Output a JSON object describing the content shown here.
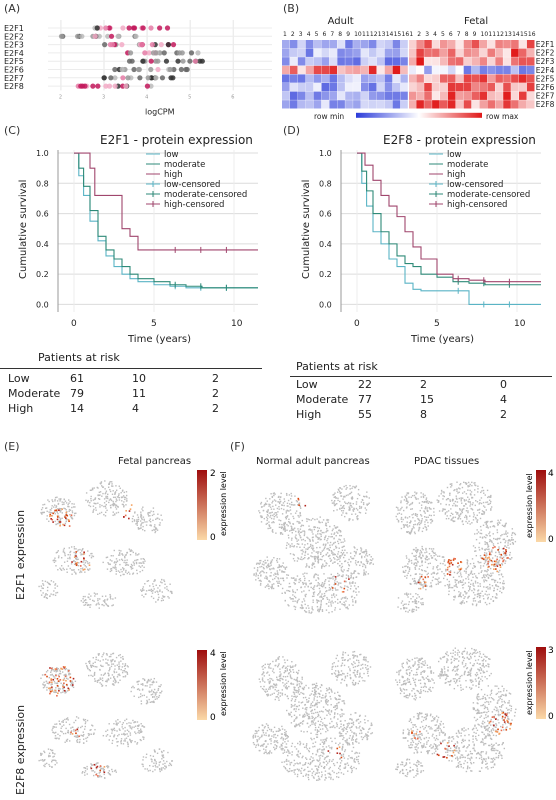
{
  "panels": {
    "A": "(A)",
    "B": "(B)",
    "C": "(C)",
    "D": "(D)",
    "E": "(E)",
    "F": "(F)"
  },
  "panelA": {
    "genes": [
      "E2F1",
      "E2F2",
      "E2F3",
      "E2F4",
      "E2F5",
      "E2F6",
      "E2F7",
      "E2F8"
    ],
    "xlabel": "logCPM",
    "ticks": [
      "2",
      "3",
      "4",
      "5",
      "6"
    ]
  },
  "panelB": {
    "group_adult": "Adult",
    "group_fetal": "Fetal",
    "adult_cols": [
      "1",
      "2",
      "3",
      "4",
      "5",
      "6",
      "7",
      "8",
      "9",
      "10",
      "11",
      "12",
      "13",
      "14",
      "15",
      "16"
    ],
    "fetal_cols": [
      "1",
      "2",
      "3",
      "4",
      "5",
      "6",
      "7",
      "8",
      "9",
      "10",
      "11",
      "12",
      "13",
      "14",
      "15",
      "16"
    ],
    "genes": [
      "E2F1",
      "E2F2",
      "E2F3",
      "E2F4",
      "E2F5",
      "E2F6",
      "E2F7",
      "E2F8"
    ],
    "legend_min": "row min",
    "legend_max": "row max",
    "min_color": "#2b3bd9",
    "max_color": "#e01818"
  },
  "chart_data": [
    {
      "type": "line",
      "title": "E2F1 - protein expression",
      "xlabel": "Time (years)",
      "ylabel": "Cumulative survival",
      "xlim": [
        -1,
        11.5
      ],
      "ylim": [
        -0.05,
        1.02
      ],
      "xticks": [
        "0",
        "5",
        "10"
      ],
      "yticks": [
        "0.0",
        "0.2",
        "0.4",
        "0.6",
        "0.8",
        "1.0"
      ],
      "legend": [
        "low",
        "moderate",
        "high",
        "low-censored",
        "moderate-censored",
        "high-censored"
      ],
      "legend_position": "top-right",
      "series": [
        {
          "name": "low",
          "color": "#5ab4c5",
          "x": [
            0,
            0.3,
            0.6,
            1,
            1.5,
            2,
            2.5,
            3,
            3.5,
            4,
            5,
            6,
            7,
            8,
            11.5
          ],
          "y": [
            1,
            0.85,
            0.72,
            0.55,
            0.42,
            0.32,
            0.25,
            0.2,
            0.17,
            0.15,
            0.13,
            0.12,
            0.11,
            0.11,
            0.11
          ]
        },
        {
          "name": "moderate",
          "color": "#2e8a78",
          "x": [
            0,
            0.3,
            0.6,
            1,
            1.5,
            2,
            2.5,
            3,
            3.5,
            4,
            5,
            6,
            7,
            8,
            11.5
          ],
          "y": [
            1,
            0.9,
            0.78,
            0.62,
            0.45,
            0.36,
            0.3,
            0.25,
            0.2,
            0.17,
            0.15,
            0.13,
            0.12,
            0.11,
            0.11
          ]
        },
        {
          "name": "high",
          "color": "#a0466d",
          "x": [
            0,
            0.5,
            1,
            1.3,
            2,
            2.5,
            3,
            3.5,
            4,
            11.5
          ],
          "y": [
            1,
            1,
            0.9,
            0.72,
            0.72,
            0.72,
            0.5,
            0.45,
            0.36,
            0.36
          ]
        }
      ]
    },
    {
      "type": "line",
      "title": "E2F8 - protein expression",
      "xlabel": "Time (years)",
      "ylabel": "Cumulative survival",
      "xlim": [
        -1,
        11.5
      ],
      "ylim": [
        -0.05,
        1.02
      ],
      "xticks": [
        "0",
        "5",
        "10"
      ],
      "yticks": [
        "0.0",
        "0.2",
        "0.4",
        "0.6",
        "0.8",
        "1.0"
      ],
      "legend": [
        "low",
        "moderate",
        "high",
        "low-censored",
        "moderate-censored",
        "high-censored"
      ],
      "legend_position": "top-right",
      "series": [
        {
          "name": "low",
          "color": "#5ab4c5",
          "x": [
            0,
            0.3,
            0.6,
            1,
            1.5,
            2,
            2.5,
            3,
            3.5,
            4,
            5,
            6,
            7,
            11.5
          ],
          "y": [
            1,
            0.8,
            0.65,
            0.48,
            0.4,
            0.3,
            0.25,
            0.14,
            0.1,
            0.09,
            0.09,
            0.09,
            0.0,
            0.0
          ]
        },
        {
          "name": "moderate",
          "color": "#2e8a78",
          "x": [
            0,
            0.3,
            0.6,
            1,
            1.5,
            2,
            2.5,
            3,
            3.5,
            4,
            5,
            6,
            7,
            8,
            11.5
          ],
          "y": [
            1,
            0.88,
            0.75,
            0.6,
            0.48,
            0.4,
            0.32,
            0.27,
            0.25,
            0.2,
            0.18,
            0.15,
            0.14,
            0.13,
            0.13
          ]
        },
        {
          "name": "high",
          "color": "#a0466d",
          "x": [
            0,
            0.5,
            1,
            1.5,
            2,
            2.5,
            3,
            3.5,
            4,
            5,
            6,
            7,
            8,
            11.5
          ],
          "y": [
            1,
            0.92,
            0.82,
            0.72,
            0.65,
            0.58,
            0.48,
            0.38,
            0.3,
            0.2,
            0.17,
            0.16,
            0.15,
            0.15
          ]
        }
      ]
    }
  ],
  "riskC": {
    "title": "Patients at risk",
    "rows": [
      {
        "label": "Low",
        "v": [
          "61",
          "10",
          "2"
        ]
      },
      {
        "label": "Moderate",
        "v": [
          "79",
          "11",
          "2"
        ]
      },
      {
        "label": "High",
        "v": [
          "14",
          "4",
          "2"
        ]
      }
    ]
  },
  "riskD": {
    "title": "Patients at risk",
    "rows": [
      {
        "label": "Low",
        "v": [
          "22",
          "2",
          "0"
        ]
      },
      {
        "label": "Moderate",
        "v": [
          "77",
          "15",
          "4"
        ]
      },
      {
        "label": "High",
        "v": [
          "55",
          "8",
          "2"
        ]
      }
    ]
  },
  "panelE": {
    "title": "Fetal pancreas",
    "row1": "E2F1 expression",
    "row2": "E2F8 expression",
    "legend_label": "expression level",
    "scale1_max": "2",
    "scale1_min": "0",
    "scale2_max": "4",
    "scale2_min": "0"
  },
  "panelF": {
    "title_left": "Normal adult pancreas",
    "title_right": "PDAC tissues",
    "legend_label": "expression level",
    "scale1_max": "4",
    "scale1_min": "0",
    "scale2_max": "3",
    "scale2_min": "0"
  },
  "colors": {
    "expr_low": "#fbd9a8",
    "expr_high": "#9e0d0d",
    "cell_grey": "#bdbdbd"
  }
}
